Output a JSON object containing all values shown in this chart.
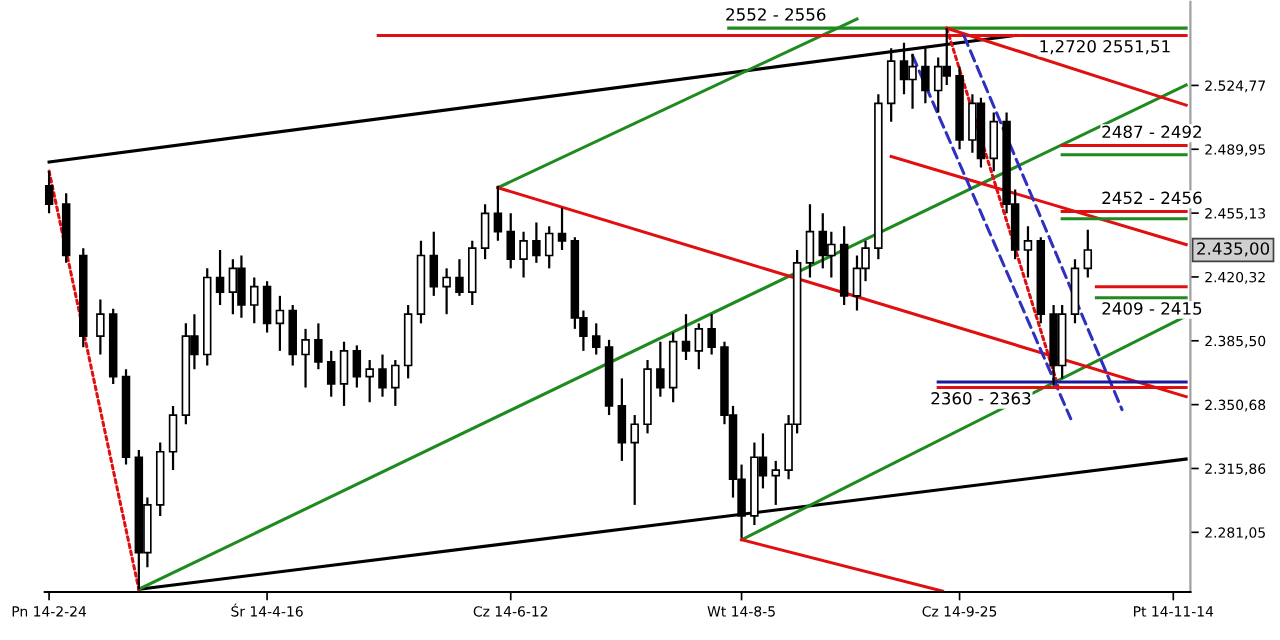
{
  "chart_data": {
    "type": "candlestick",
    "color": "#000000",
    "x": [
      "2014-02-24",
      "2014-02-28",
      "2014-03-04",
      "2014-03-08",
      "2014-03-11",
      "2014-03-14",
      "2014-03-17",
      "2014-03-19",
      "2014-03-22",
      "2014-03-25",
      "2014-03-28",
      "2014-03-30",
      "2014-04-02",
      "2014-04-05",
      "2014-04-08",
      "2014-04-10",
      "2014-04-13",
      "2014-04-16",
      "2014-04-19",
      "2014-04-22",
      "2014-04-25",
      "2014-04-28",
      "2014-05-01",
      "2014-05-04",
      "2014-05-07",
      "2014-05-10",
      "2014-05-13",
      "2014-05-16",
      "2014-05-19",
      "2014-05-22",
      "2014-05-25",
      "2014-05-28",
      "2014-05-31",
      "2014-06-03",
      "2014-06-06",
      "2014-06-09",
      "2014-06-12",
      "2014-06-15",
      "2014-06-18",
      "2014-06-21",
      "2014-06-24",
      "2014-06-27",
      "2014-06-29",
      "2014-07-02",
      "2014-07-05",
      "2014-07-08",
      "2014-07-11",
      "2014-07-14",
      "2014-07-17",
      "2014-07-20",
      "2014-07-23",
      "2014-07-26",
      "2014-07-29",
      "2014-08-01",
      "2014-08-03",
      "2014-08-05",
      "2014-08-08",
      "2014-08-10",
      "2014-08-13",
      "2014-08-16",
      "2014-08-18",
      "2014-08-21",
      "2014-08-24",
      "2014-08-26",
      "2014-08-29",
      "2014-09-01",
      "2014-09-03",
      "2014-09-06",
      "2014-09-09",
      "2014-09-12",
      "2014-09-14",
      "2014-09-17",
      "2014-09-20",
      "2014-09-22",
      "2014-09-25",
      "2014-09-28",
      "2014-09-30",
      "2014-10-03",
      "2014-10-06",
      "2014-10-08",
      "2014-10-11",
      "2014-10-14",
      "2014-10-17",
      "2014-10-19",
      "2014-10-22",
      "2014-10-25"
    ],
    "ohlc": [
      [
        2470,
        2478,
        2455,
        2460
      ],
      [
        2460,
        2466,
        2428,
        2432
      ],
      [
        2432,
        2436,
        2382,
        2388
      ],
      [
        2388,
        2408,
        2378,
        2400
      ],
      [
        2400,
        2403,
        2362,
        2366
      ],
      [
        2366,
        2370,
        2318,
        2322
      ],
      [
        2322,
        2326,
        2250,
        2270
      ],
      [
        2270,
        2300,
        2262,
        2296
      ],
      [
        2296,
        2330,
        2290,
        2325
      ],
      [
        2325,
        2350,
        2315,
        2345
      ],
      [
        2345,
        2395,
        2340,
        2388
      ],
      [
        2388,
        2400,
        2370,
        2378
      ],
      [
        2378,
        2425,
        2372,
        2420
      ],
      [
        2420,
        2435,
        2405,
        2412
      ],
      [
        2412,
        2430,
        2400,
        2425
      ],
      [
        2425,
        2432,
        2398,
        2405
      ],
      [
        2405,
        2420,
        2395,
        2415
      ],
      [
        2415,
        2418,
        2390,
        2395
      ],
      [
        2395,
        2410,
        2380,
        2402
      ],
      [
        2402,
        2405,
        2372,
        2378
      ],
      [
        2378,
        2392,
        2360,
        2386
      ],
      [
        2386,
        2395,
        2370,
        2374
      ],
      [
        2374,
        2380,
        2355,
        2362
      ],
      [
        2362,
        2385,
        2350,
        2380
      ],
      [
        2380,
        2383,
        2360,
        2366
      ],
      [
        2366,
        2375,
        2352,
        2370
      ],
      [
        2370,
        2378,
        2355,
        2360
      ],
      [
        2360,
        2375,
        2350,
        2372
      ],
      [
        2372,
        2405,
        2365,
        2400
      ],
      [
        2400,
        2440,
        2395,
        2432
      ],
      [
        2432,
        2445,
        2410,
        2415
      ],
      [
        2415,
        2425,
        2400,
        2420
      ],
      [
        2420,
        2430,
        2410,
        2412
      ],
      [
        2412,
        2440,
        2405,
        2436
      ],
      [
        2436,
        2460,
        2430,
        2455
      ],
      [
        2455,
        2470,
        2440,
        2445
      ],
      [
        2445,
        2455,
        2425,
        2430
      ],
      [
        2430,
        2445,
        2420,
        2440
      ],
      [
        2440,
        2450,
        2428,
        2432
      ],
      [
        2432,
        2448,
        2425,
        2444
      ],
      [
        2444,
        2458,
        2435,
        2440
      ],
      [
        2440,
        2442,
        2392,
        2398
      ],
      [
        2398,
        2402,
        2380,
        2388
      ],
      [
        2388,
        2395,
        2378,
        2382
      ],
      [
        2382,
        2386,
        2345,
        2350
      ],
      [
        2350,
        2365,
        2320,
        2330
      ],
      [
        2330,
        2345,
        2296,
        2340
      ],
      [
        2340,
        2375,
        2335,
        2370
      ],
      [
        2370,
        2385,
        2355,
        2360
      ],
      [
        2360,
        2390,
        2352,
        2385
      ],
      [
        2385,
        2400,
        2375,
        2380
      ],
      [
        2380,
        2395,
        2370,
        2392
      ],
      [
        2392,
        2400,
        2378,
        2382
      ],
      [
        2382,
        2385,
        2340,
        2345
      ],
      [
        2345,
        2350,
        2300,
        2310
      ],
      [
        2310,
        2318,
        2278,
        2290
      ],
      [
        2290,
        2330,
        2285,
        2322
      ],
      [
        2322,
        2335,
        2305,
        2312
      ],
      [
        2312,
        2320,
        2296,
        2315
      ],
      [
        2315,
        2345,
        2310,
        2340
      ],
      [
        2340,
        2435,
        2335,
        2428
      ],
      [
        2428,
        2460,
        2420,
        2445
      ],
      [
        2445,
        2455,
        2425,
        2432
      ],
      [
        2432,
        2445,
        2420,
        2438
      ],
      [
        2438,
        2448,
        2405,
        2410
      ],
      [
        2410,
        2432,
        2402,
        2425
      ],
      [
        2425,
        2440,
        2418,
        2436
      ],
      [
        2436,
        2520,
        2430,
        2515
      ],
      [
        2515,
        2545,
        2505,
        2538
      ],
      [
        2538,
        2548,
        2520,
        2528
      ],
      [
        2528,
        2542,
        2512,
        2535
      ],
      [
        2535,
        2545,
        2515,
        2522
      ],
      [
        2522,
        2540,
        2510,
        2535
      ],
      [
        2535,
        2556,
        2525,
        2530
      ],
      [
        2530,
        2535,
        2490,
        2495
      ],
      [
        2495,
        2520,
        2488,
        2515
      ],
      [
        2515,
        2518,
        2480,
        2485
      ],
      [
        2485,
        2510,
        2478,
        2505
      ],
      [
        2505,
        2510,
        2455,
        2460
      ],
      [
        2460,
        2468,
        2430,
        2435
      ],
      [
        2435,
        2448,
        2420,
        2440
      ],
      [
        2440,
        2442,
        2395,
        2400
      ],
      [
        2400,
        2405,
        2361,
        2372
      ],
      [
        2372,
        2405,
        2365,
        2400
      ],
      [
        2400,
        2430,
        2395,
        2425
      ],
      [
        2425,
        2446,
        2420,
        2435
      ]
    ],
    "series": [
      {
        "type": "line",
        "color": "#000000",
        "x": [
          "2014-02-24",
          "2014-10-08"
        ],
        "values": [
          2483,
          2552
        ]
      },
      {
        "type": "line",
        "color": "#000000",
        "x": [
          "2014-03-17",
          "2014-11-17"
        ],
        "values": [
          2250,
          2321
        ]
      },
      {
        "type": "line",
        "color": "#1f8a1f",
        "x": [
          "2014-03-17",
          "2014-11-17"
        ],
        "values": [
          2250,
          2525
        ]
      },
      {
        "type": "line",
        "color": "#1f8a1f",
        "x": [
          "2014-06-09",
          "2014-09-01"
        ],
        "values": [
          2469,
          2561
        ]
      },
      {
        "type": "line",
        "color": "#1f8a1f",
        "x": [
          "2014-08-05",
          "2014-11-17"
        ],
        "values": [
          2277,
          2399
        ]
      },
      {
        "type": "line",
        "color": "#e01010",
        "x": [
          "2014-05-12",
          "2014-11-17"
        ],
        "values": [
          2552,
          2552
        ]
      },
      {
        "type": "line",
        "color": "#1f8a1f",
        "x": [
          "2014-08-02",
          "2014-11-17"
        ],
        "values": [
          2556,
          2556
        ]
      },
      {
        "type": "line",
        "color": "#e01010",
        "x": [
          "2014-06-09",
          "2014-11-17"
        ],
        "values": [
          2469,
          2355
        ]
      },
      {
        "type": "line",
        "color": "#e01010",
        "x": [
          "2014-08-05",
          "2014-09-21"
        ],
        "values": [
          2277,
          2249
        ]
      },
      {
        "type": "line",
        "color": "#e01010",
        "x": [
          "2014-09-22",
          "2014-11-17"
        ],
        "values": [
          2556,
          2514
        ]
      },
      {
        "type": "line",
        "color": "#e01010",
        "x": [
          "2014-09-09",
          "2014-11-17"
        ],
        "values": [
          2486,
          2438
        ]
      },
      {
        "type": "line",
        "color": "#e01010",
        "line_style": "dotted",
        "x": [
          "2014-02-24",
          "2014-03-17"
        ],
        "values": [
          2478,
          2250
        ]
      },
      {
        "type": "line",
        "color": "#e01010",
        "line_style": "dotted",
        "x": [
          "2014-09-22",
          "2014-10-18"
        ],
        "values": [
          2556,
          2361
        ]
      },
      {
        "type": "line",
        "color": "#3030c0",
        "line_style": "dashed",
        "x": [
          "2014-09-14",
          "2014-10-21"
        ],
        "values": [
          2541,
          2343
        ]
      },
      {
        "type": "line",
        "color": "#3030c0",
        "line_style": "dashed",
        "x": [
          "2014-09-26",
          "2014-11-02"
        ],
        "values": [
          2552,
          2348
        ]
      },
      {
        "type": "line",
        "color": "#e01010",
        "x": [
          "2014-10-19",
          "2014-11-17"
        ],
        "values": [
          2492,
          2492
        ]
      },
      {
        "type": "line",
        "color": "#1f8a1f",
        "x": [
          "2014-10-19",
          "2014-11-17"
        ],
        "values": [
          2487,
          2487
        ]
      },
      {
        "type": "line",
        "color": "#e01010",
        "x": [
          "2014-10-19",
          "2014-11-17"
        ],
        "values": [
          2456,
          2456
        ]
      },
      {
        "type": "line",
        "color": "#1f8a1f",
        "x": [
          "2014-10-19",
          "2014-11-17"
        ],
        "values": [
          2452,
          2452
        ]
      },
      {
        "type": "line",
        "color": "#e01010",
        "x": [
          "2014-10-27",
          "2014-11-17"
        ],
        "values": [
          2415,
          2415
        ]
      },
      {
        "type": "line",
        "color": "#1f8a1f",
        "x": [
          "2014-10-27",
          "2014-11-17"
        ],
        "values": [
          2409,
          2409
        ]
      },
      {
        "type": "line",
        "color": "#1a1a9a",
        "x": [
          "2014-09-20",
          "2014-11-17"
        ],
        "values": [
          2363,
          2363
        ]
      },
      {
        "type": "line",
        "color": "#e01010",
        "x": [
          "2014-09-20",
          "2014-11-17"
        ],
        "values": [
          2360,
          2360
        ]
      }
    ],
    "annotations": [
      {
        "text": "2552 - 2556",
        "x": "2014-08-13",
        "y": 2556
      },
      {
        "text": "1,2720 2551,51",
        "x": "2014-10-29",
        "y": 2552
      },
      {
        "text": "2487 - 2492",
        "x": "2014-11-09",
        "y": 2492
      },
      {
        "text": "2452 - 2456",
        "x": "2014-11-09",
        "y": 2456
      },
      {
        "text": "2409 - 2415",
        "x": "2014-11-09",
        "y": 2409
      },
      {
        "text": "2360 - 2363",
        "x": "2014-09-30",
        "y": 2360
      },
      {
        "text": "2.435,00",
        "x": "2014-11-18",
        "y": 2435
      }
    ],
    "xlim": [
      "2014-02-23",
      "2014-11-18"
    ],
    "xticks": [
      {
        "value": "2014-02-24",
        "label": "Pn 14-2-24"
      },
      {
        "value": "2014-04-16",
        "label": "Śr 14-4-16"
      },
      {
        "value": "2014-06-12",
        "label": "Cz 14-6-12"
      },
      {
        "value": "2014-08-05",
        "label": "Wt 14-8-5"
      },
      {
        "value": "2014-09-25",
        "label": "Cz 14-9-25"
      },
      {
        "value": "2014-11-14",
        "label": "Pt 14-11-14"
      }
    ],
    "ylim": [
      2248.5,
      2570.3
    ],
    "yticks": [
      {
        "value": 2281.05,
        "label": "2.281,05"
      },
      {
        "value": 2315.86,
        "label": "2.315,86"
      },
      {
        "value": 2350.68,
        "label": "2.350,68"
      },
      {
        "value": 2385.5,
        "label": "2.385,50"
      },
      {
        "value": 2420.32,
        "label": "2.420,32"
      },
      {
        "value": 2455.13,
        "label": "2.455,13"
      },
      {
        "value": 2489.95,
        "label": "2.489,95"
      },
      {
        "value": 2524.77,
        "label": "2.524,77"
      }
    ]
  }
}
